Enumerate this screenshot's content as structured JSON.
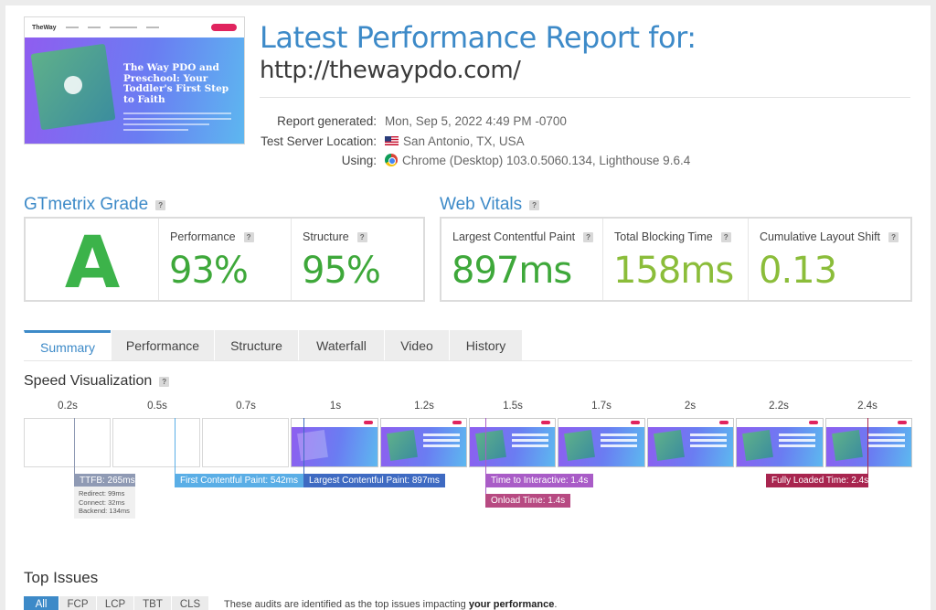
{
  "thumbnail": {
    "logo_text": "TheWay",
    "hero_title": "The Way PDO and Preschool: Your Toddler's First Step to Faith"
  },
  "header": {
    "title": "Latest Performance Report for:",
    "url": "http://thewaypdo.com/"
  },
  "meta": {
    "report_generated_label": "Report generated:",
    "report_generated_value": "Mon, Sep 5, 2022 4:49 PM -0700",
    "server_location_label": "Test Server Location:",
    "server_location_value": "San Antonio, TX, USA",
    "using_label": "Using:",
    "using_value": "Chrome (Desktop) 103.0.5060.134, Lighthouse 9.6.4"
  },
  "gtmetrix_grade": {
    "heading": "GTmetrix Grade",
    "help": "?",
    "grade": "A",
    "performance_label": "Performance",
    "performance_value": "93%",
    "structure_label": "Structure",
    "structure_value": "95%"
  },
  "web_vitals": {
    "heading": "Web Vitals",
    "help": "?",
    "lcp_label": "Largest Contentful Paint",
    "lcp_value": "897ms",
    "tbt_label": "Total Blocking Time",
    "tbt_value": "158ms",
    "cls_label": "Cumulative Layout Shift",
    "cls_value": "0.13"
  },
  "tabs": [
    "Summary",
    "Performance",
    "Structure",
    "Waterfall",
    "Video",
    "History"
  ],
  "speed_visualization": {
    "heading": "Speed Visualization",
    "help": "?",
    "time_labels": [
      "0.2s",
      "0.5s",
      "0.7s",
      "1s",
      "1.2s",
      "1.5s",
      "1.7s",
      "2s",
      "2.2s",
      "2.4s"
    ],
    "frame_states": [
      "blank",
      "blank",
      "blank",
      "gradient",
      "content",
      "content",
      "full",
      "full",
      "full",
      "full"
    ],
    "markers": {
      "ttfb": "TTFB: 265ms",
      "fcp": "First Contentful Paint: 542ms",
      "lcp": "Largest Contentful Paint: 897ms",
      "tti": "Time to Interactive: 1.4s",
      "onload": "Onload Time: 1.4s",
      "fully_loaded": "Fully Loaded Time: 2.4s"
    },
    "ttfb_details": {
      "redirect": "Redirect: 99ms",
      "connect": "Connect: 32ms",
      "backend": "Backend: 134ms"
    }
  },
  "top_issues": {
    "heading": "Top Issues",
    "tabs": [
      "All",
      "FCP",
      "LCP",
      "TBT",
      "CLS"
    ],
    "note_prefix": "These audits are identified as the top issues impacting ",
    "note_bold": "your performance",
    "note_suffix": "."
  },
  "colors": {
    "accent_blue": "#3d8ac8",
    "grade_green": "#3cb34a",
    "value_green": "#3ea83a",
    "value_lightgreen": "#8bbd3a",
    "marker_ttfb": "#8f9ab4",
    "marker_fcp": "#5aaee6",
    "marker_lcp": "#3e6ac2",
    "marker_tti": "#a95cc7",
    "marker_onload": "#b74a82",
    "marker_fully": "#a8254f"
  }
}
